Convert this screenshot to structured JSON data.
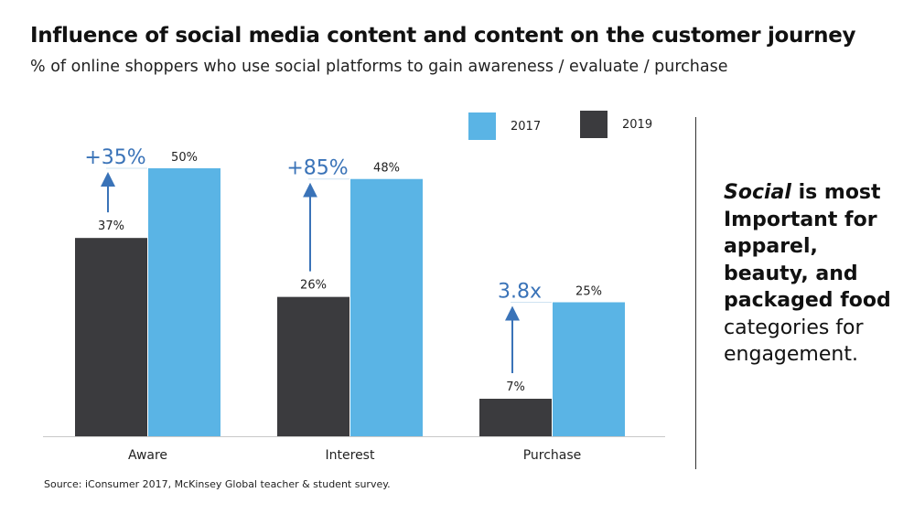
{
  "title": "Influence of social media content and content on the customer journey",
  "subtitle": "% of online shoppers who use social platforms to gain awareness / evaluate / purchase",
  "legend": [
    {
      "label": "2017",
      "color": "#5ab4e5"
    },
    {
      "label": "2019",
      "color": "#3b3b3e"
    }
  ],
  "note": {
    "italic": "Social",
    "bold": " is most Important for apparel, beauty, and packaged food",
    "normal": " categories for engagement."
  },
  "source": "Source: iConsumer 2017, McKinsey Global teacher & student survey.",
  "chart_data": {
    "type": "bar",
    "categories": [
      "Aware",
      "Interest",
      "Purchase"
    ],
    "series": [
      {
        "name": "2019",
        "values": [
          37,
          26,
          7
        ],
        "labels": [
          "37%",
          "26%",
          "7%"
        ],
        "color": "#3b3b3e"
      },
      {
        "name": "2017",
        "values": [
          50,
          48,
          25
        ],
        "labels": [
          "50%",
          "48%",
          "25%"
        ],
        "color": "#5ab4e5"
      }
    ],
    "growth_labels": [
      "+35%",
      "+85%",
      "3.8x"
    ],
    "growth_color": "#3a73b8",
    "ylim": [
      0,
      50
    ],
    "legend_position": "top-right"
  }
}
